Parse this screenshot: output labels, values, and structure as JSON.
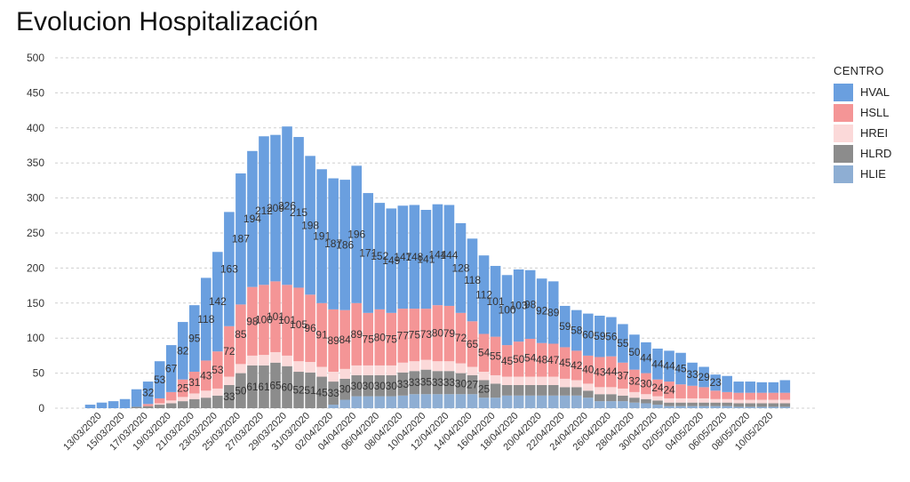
{
  "chart_data": {
    "type": "bar",
    "stacked": true,
    "title": "Evolucion Hospitalización",
    "ylim": [
      0,
      500
    ],
    "yticks": [
      0,
      50,
      100,
      150,
      200,
      250,
      300,
      350,
      400,
      450,
      500
    ],
    "grid": true,
    "legend_title": "CENTRO",
    "legend_position": "right",
    "categories": [
      "12/03/2020",
      "13/03/2020",
      "14/03/2020",
      "15/03/2020",
      "16/03/2020",
      "17/03/2020",
      "18/03/2020",
      "19/03/2020",
      "20/03/2020",
      "21/03/2020",
      "22/03/2020",
      "23/03/2020",
      "24/03/2020",
      "25/03/2020",
      "26/03/2020",
      "27/03/2020",
      "28/03/2020",
      "29/03/2020",
      "30/03/2020",
      "31/03/2020",
      "01/04/2020",
      "02/04/2020",
      "03/04/2020",
      "04/04/2020",
      "05/04/2020",
      "06/04/2020",
      "07/04/2020",
      "08/04/2020",
      "09/04/2020",
      "10/04/2020",
      "11/04/2020",
      "12/04/2020",
      "13/04/2020",
      "14/04/2020",
      "15/04/2020",
      "16/04/2020",
      "17/04/2020",
      "18/04/2020",
      "19/04/2020",
      "20/04/2020",
      "21/04/2020",
      "22/04/2020",
      "23/04/2020",
      "24/04/2020",
      "25/04/2020",
      "26/04/2020",
      "27/04/2020",
      "28/04/2020",
      "29/04/2020",
      "30/04/2020",
      "01/05/2020",
      "02/05/2020",
      "03/05/2020",
      "04/05/2020",
      "05/05/2020",
      "06/05/2020",
      "07/05/2020",
      "08/05/2020",
      "09/05/2020",
      "10/05/2020",
      "11/05/2020"
    ],
    "xtick_labels": [
      "13/03/2020",
      "15/03/2020",
      "17/03/2020",
      "19/03/2020",
      "21/03/2020",
      "23/03/2020",
      "25/03/2020",
      "27/03/2020",
      "29/03/2020",
      "31/03/2020",
      "02/04/2020",
      "04/04/2020",
      "06/04/2020",
      "08/04/2020",
      "10/04/2020",
      "12/04/2020",
      "14/04/2020",
      "16/04/2020",
      "18/04/2020",
      "20/04/2020",
      "22/04/2020",
      "24/04/2020",
      "26/04/2020",
      "28/04/2020",
      "30/04/2020",
      "02/05/2020",
      "04/05/2020",
      "06/05/2020",
      "08/05/2020",
      "10/05/2020"
    ],
    "series": [
      {
        "name": "HLIE",
        "color": "#8eaed3",
        "values": [
          0,
          0,
          0,
          0,
          0,
          0,
          0,
          0,
          0,
          0,
          0,
          0,
          0,
          0,
          0,
          0,
          0,
          0,
          0,
          0,
          0,
          5,
          12,
          17,
          17,
          17,
          17,
          18,
          20,
          20,
          20,
          20,
          20,
          20,
          15,
          15,
          18,
          18,
          18,
          18,
          18,
          18,
          18,
          15,
          10,
          10,
          10,
          8,
          7,
          5,
          3,
          3,
          3,
          3,
          3,
          3,
          2,
          2,
          2,
          2,
          2
        ]
      },
      {
        "name": "HLRD",
        "color": "#8c8c8c",
        "values": [
          0,
          0,
          0,
          0,
          2,
          3,
          5,
          7,
          10,
          13,
          15,
          18,
          33,
          50,
          61,
          61,
          65,
          60,
          52,
          51,
          45,
          33,
          30,
          30,
          30,
          30,
          30,
          33,
          33,
          35,
          33,
          33,
          30,
          27,
          25,
          20,
          15,
          15,
          15,
          15,
          15,
          12,
          12,
          10,
          10,
          10,
          8,
          7,
          6,
          6,
          5,
          5,
          5,
          5,
          5,
          5,
          5,
          5,
          5,
          5,
          5
        ]
      },
      {
        "name": "HREI",
        "color": "#fbd9d9",
        "values": [
          0,
          0,
          0,
          0,
          0,
          0,
          2,
          4,
          6,
          8,
          10,
          10,
          12,
          13,
          14,
          15,
          15,
          15,
          15,
          15,
          14,
          14,
          14,
          14,
          14,
          14,
          14,
          14,
          14,
          14,
          14,
          14,
          14,
          12,
          12,
          12,
          12,
          12,
          12,
          12,
          12,
          12,
          10,
          10,
          10,
          10,
          10,
          8,
          7,
          6,
          6,
          6,
          6,
          6,
          5,
          5,
          5,
          5,
          5,
          5,
          5
        ]
      },
      {
        "name": "HSLL",
        "color": "#f49596",
        "values": [
          0,
          0,
          0,
          0,
          0,
          3,
          7,
          12,
          25,
          31,
          43,
          53,
          72,
          85,
          98,
          100,
          101,
          101,
          105,
          96,
          91,
          89,
          84,
          89,
          75,
          80,
          75,
          77,
          75,
          73,
          80,
          79,
          72,
          65,
          54,
          55,
          45,
          50,
          54,
          48,
          47,
          45,
          42,
          40,
          43,
          44,
          37,
          32,
          30,
          24,
          24,
          20,
          18,
          16,
          12,
          10,
          10,
          10,
          10,
          10,
          10
        ]
      },
      {
        "name": "HVAL",
        "color": "#6a9fdf",
        "values": [
          5,
          8,
          10,
          13,
          25,
          32,
          53,
          67,
          82,
          95,
          118,
          142,
          163,
          187,
          194,
          212,
          209,
          226,
          215,
          198,
          191,
          187,
          186,
          196,
          171,
          152,
          149,
          147,
          148,
          141,
          144,
          144,
          128,
          118,
          112,
          101,
          100,
          103,
          98,
          92,
          89,
          59,
          58,
          60,
          59,
          56,
          55,
          50,
          44,
          44,
          44,
          45,
          33,
          29,
          23,
          23,
          16,
          16,
          15,
          15,
          18
        ]
      }
    ],
    "data_labels": {
      "HVAL": [
        null,
        null,
        null,
        null,
        null,
        32,
        53,
        67,
        82,
        95,
        118,
        142,
        163,
        187,
        194,
        212,
        209,
        226,
        215,
        198,
        191,
        187,
        186,
        196,
        171,
        152,
        149,
        147,
        148,
        141,
        144,
        144,
        128,
        118,
        112,
        101,
        100,
        103,
        98,
        92,
        89,
        59,
        58,
        60,
        59,
        56,
        55,
        50,
        44,
        44,
        44,
        45,
        33,
        29,
        23,
        null,
        null,
        null,
        null,
        null,
        null
      ],
      "HSLL": [
        null,
        null,
        null,
        null,
        null,
        null,
        null,
        null,
        25,
        31,
        43,
        53,
        72,
        85,
        98,
        100,
        101,
        101,
        105,
        96,
        91,
        89,
        84,
        89,
        75,
        80,
        75,
        77,
        75,
        73,
        80,
        79,
        72,
        65,
        54,
        55,
        45,
        50,
        54,
        48,
        47,
        45,
        42,
        40,
        43,
        44,
        37,
        32,
        30,
        24,
        24,
        null,
        null,
        null,
        null,
        null,
        null,
        null,
        null,
        null,
        null
      ],
      "HLRD": [
        null,
        null,
        null,
        null,
        null,
        null,
        null,
        null,
        null,
        null,
        null,
        null,
        33,
        50,
        61,
        61,
        65,
        60,
        52,
        51,
        45,
        33,
        30,
        30,
        30,
        30,
        30,
        33,
        33,
        35,
        33,
        33,
        30,
        27,
        25,
        null,
        null,
        null,
        null,
        null,
        null,
        null,
        null,
        null,
        null,
        null,
        null,
        null,
        null,
        null,
        null,
        null,
        null,
        null,
        null,
        null,
        null,
        null,
        null,
        null,
        null
      ]
    }
  }
}
